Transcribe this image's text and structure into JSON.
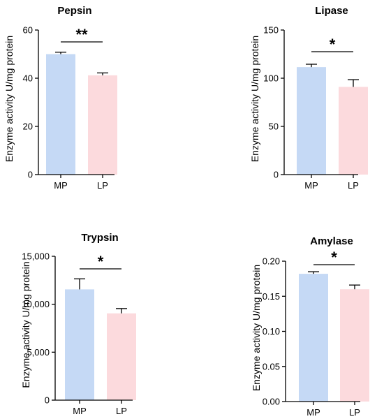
{
  "chart_data": [
    {
      "type": "bar",
      "title": "Pepsin",
      "ylabel": "Enzyme activity U/mg protein",
      "categories": [
        "MP",
        "LP"
      ],
      "values": [
        50,
        41.2
      ],
      "errors": [
        0.8,
        1.0
      ],
      "ylim": [
        0,
        60
      ],
      "yticks": [
        0,
        20,
        40,
        60
      ],
      "ytick_labels": [
        "0",
        "20",
        "40",
        "60"
      ],
      "colors": [
        "#c5d9f5",
        "#fcdadd"
      ],
      "significance": "**"
    },
    {
      "type": "bar",
      "title": "Lipase",
      "ylabel": "Enzyme activity U/mg protein",
      "categories": [
        "MP",
        "LP"
      ],
      "values": [
        111.5,
        91
      ],
      "errors": [
        3,
        7.5
      ],
      "ylim": [
        0,
        150
      ],
      "yticks": [
        0,
        50,
        100,
        150
      ],
      "ytick_labels": [
        "0",
        "50",
        "100",
        "150"
      ],
      "colors": [
        "#c5d9f5",
        "#fcdadd"
      ],
      "significance": "*"
    },
    {
      "type": "bar",
      "title": "Trypsin",
      "ylabel": "Enzyme activity U/mg protein",
      "categories": [
        "MP",
        "LP"
      ],
      "values": [
        11550,
        9050
      ],
      "errors": [
        1100,
        500
      ],
      "ylim": [
        0,
        15000
      ],
      "yticks": [
        0,
        5000,
        10000,
        15000
      ],
      "ytick_labels": [
        "0",
        "5,000",
        "10,000",
        "15,000"
      ],
      "colors": [
        "#c5d9f5",
        "#fcdadd"
      ],
      "significance": "*"
    },
    {
      "type": "bar",
      "title": "Amylase",
      "ylabel": "Enzyme activity U/mg protein",
      "categories": [
        "MP",
        "LP"
      ],
      "values": [
        0.182,
        0.16
      ],
      "errors": [
        0.003,
        0.006
      ],
      "ylim": [
        0,
        0.2
      ],
      "yticks": [
        0,
        0.05,
        0.1,
        0.15,
        0.2
      ],
      "ytick_labels": [
        "0.00",
        "0.05",
        "0.10",
        "0.15",
        "0.20"
      ],
      "colors": [
        "#c5d9f5",
        "#fcdadd"
      ],
      "significance": "*"
    }
  ]
}
